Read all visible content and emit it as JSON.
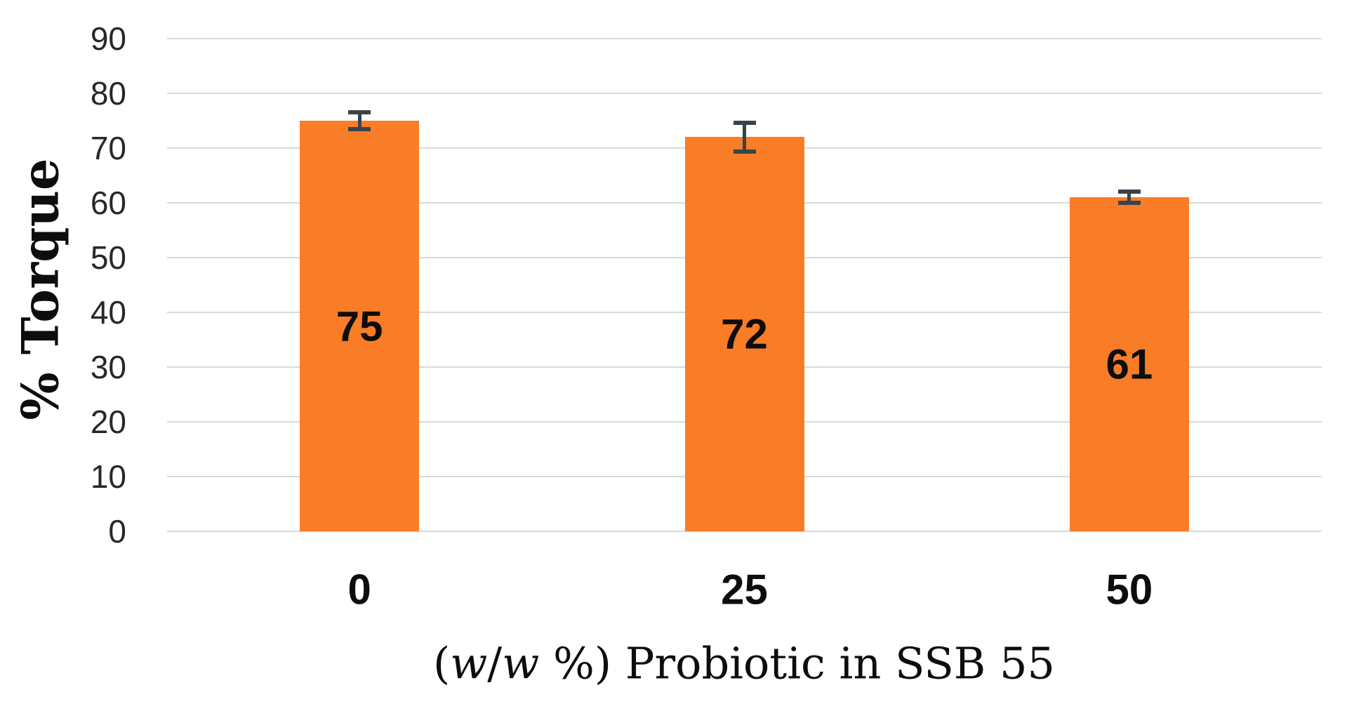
{
  "chart_data": {
    "type": "bar",
    "title": "",
    "categories": [
      "0",
      "25",
      "50"
    ],
    "series": [
      {
        "name": "% Torque",
        "values": [
          75,
          72,
          61
        ],
        "errors": [
          1.6,
          2.6,
          1.0
        ],
        "data_labels": [
          "75",
          "72",
          "61"
        ]
      }
    ],
    "xlabel_text": "(w/w %) Probiotic in SSB 55",
    "xlabel_parts": [
      {
        "text": "(",
        "italic": false
      },
      {
        "text": "w",
        "italic": true
      },
      {
        "text": "/",
        "italic": false
      },
      {
        "text": "w",
        "italic": true
      },
      {
        "text": " %) Probiotic in SSB 55",
        "italic": false
      }
    ],
    "ylabel": "% Torque",
    "ylim": [
      0,
      90
    ],
    "ytick_step": 10,
    "yticks": [
      0,
      10,
      20,
      30,
      40,
      50,
      60,
      70,
      80,
      90
    ],
    "grid": true,
    "legend": "none",
    "colors": {
      "bar": "#F97D26",
      "error_bar": "#3A434C",
      "gridline": "#D9D9D9",
      "tick_text": "#282828",
      "label_text": "#0D0D0D"
    }
  }
}
